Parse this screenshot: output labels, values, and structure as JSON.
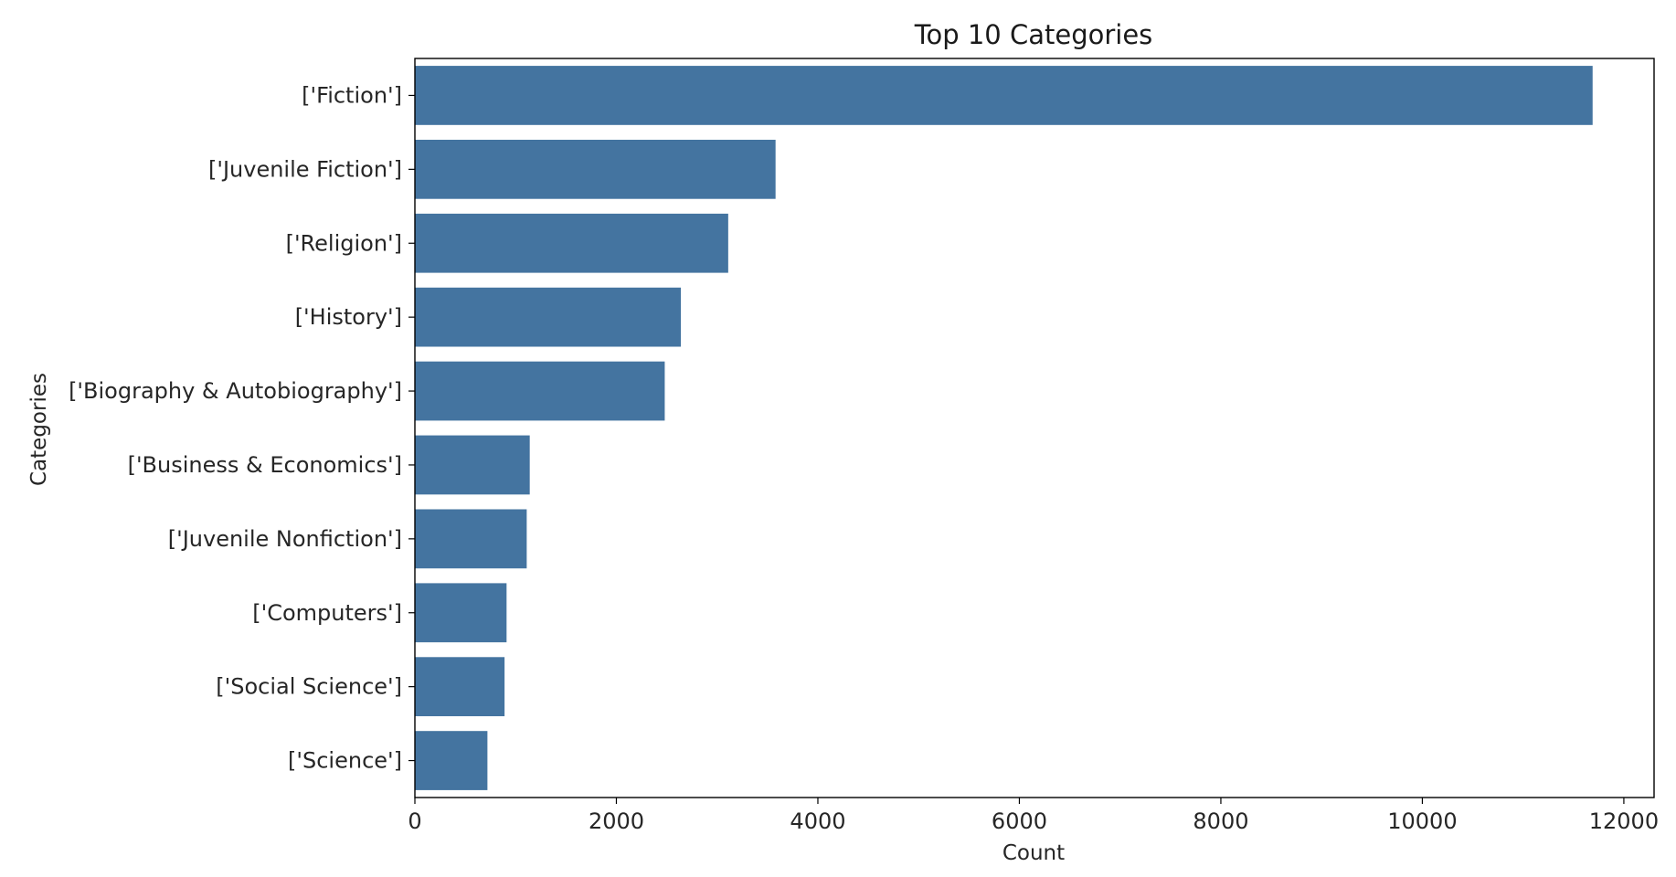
{
  "chart_data": {
    "type": "bar",
    "orientation": "horizontal",
    "title": "Top 10 Categories",
    "xlabel": "Count",
    "ylabel": "Categories",
    "categories": [
      "['Fiction']",
      "['Juvenile Fiction']",
      "['Religion']",
      "['History']",
      "['Biography & Autobiography']",
      "['Business & Economics']",
      "['Juvenile Nonfiction']",
      "['Computers']",
      "['Social Science']",
      "['Science']"
    ],
    "values": [
      11690,
      3580,
      3110,
      2640,
      2480,
      1140,
      1110,
      910,
      890,
      720
    ],
    "xlim": [
      0,
      12300
    ],
    "xticks": [
      0,
      2000,
      4000,
      6000,
      8000,
      10000,
      12000
    ],
    "xtick_labels": [
      "0",
      "2000",
      "4000",
      "6000",
      "8000",
      "10000",
      "12000"
    ],
    "bar_color": "#4474a0",
    "grid": false
  }
}
